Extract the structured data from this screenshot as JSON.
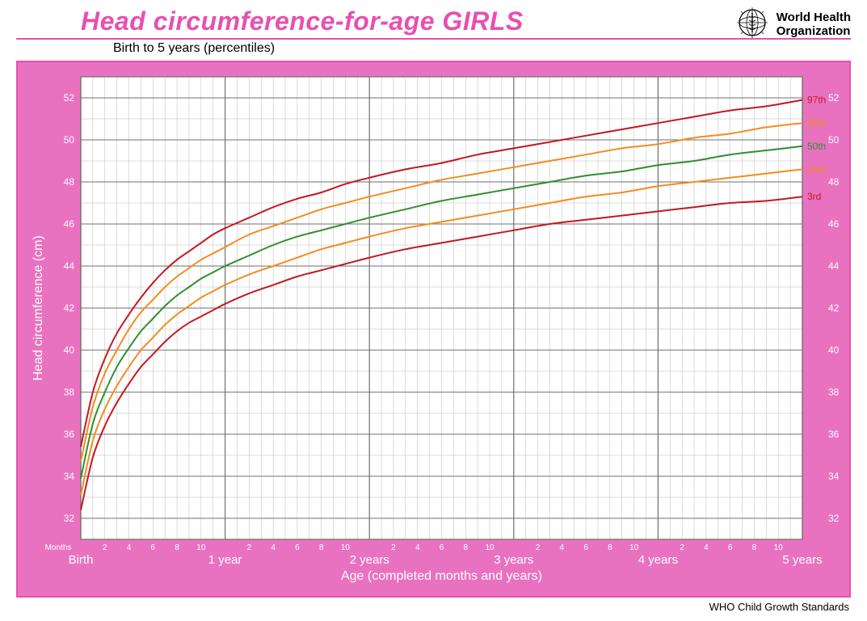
{
  "header": {
    "title": "Head circumference-for-age  GIRLS",
    "subtitle": "Birth to 5 years (percentiles)",
    "title_color": "#e84fb0",
    "rule_color": "#e84fb0",
    "who_line1": "World Health",
    "who_line2": "Organization"
  },
  "footer": {
    "text": "WHO Child Growth Standards"
  },
  "chart": {
    "type": "line",
    "frame_border_color": "#e84fb0",
    "frame_bg_color": "#e972c0",
    "plot_bg_color": "#ffffff",
    "grid_minor_color": "#b9b9b9",
    "grid_major_color": "#6f6f6f",
    "axis_label_color": "#ffffff",
    "tick_label_color": "#ffffff",
    "month_label_color": "#ffffff",
    "x_axis_title": "Age (completed months and years)",
    "y_axis_title": "Head circumference (cm)",
    "months_label": "Months",
    "y_min": 31,
    "y_max": 53,
    "y_ticks": [
      32,
      34,
      36,
      38,
      40,
      42,
      44,
      46,
      48,
      50,
      52
    ],
    "x_min_months": 0,
    "x_max_months": 60,
    "x_major_months": [
      0,
      12,
      24,
      36,
      48,
      60
    ],
    "x_major_labels": [
      "Birth",
      "1 year",
      "2 years",
      "3 years",
      "4 years",
      "5 years"
    ],
    "x_minor_tick_labels": [
      "2",
      "4",
      "6",
      "8",
      "10"
    ],
    "axis_title_fontsize": 16,
    "y_tick_fontsize": 12,
    "x_major_label_fontsize": 15,
    "x_minor_label_fontsize": 10,
    "line_width": 2,
    "series": [
      {
        "name": "97th",
        "label": "97th",
        "color": "#c4181f",
        "data": [
          [
            0,
            35.4
          ],
          [
            1,
            38.0
          ],
          [
            2,
            39.6
          ],
          [
            3,
            40.8
          ],
          [
            4,
            41.7
          ],
          [
            5,
            42.5
          ],
          [
            6,
            43.2
          ],
          [
            7,
            43.8
          ],
          [
            8,
            44.3
          ],
          [
            9,
            44.7
          ],
          [
            10,
            45.1
          ],
          [
            11,
            45.5
          ],
          [
            12,
            45.8
          ],
          [
            14,
            46.3
          ],
          [
            16,
            46.8
          ],
          [
            18,
            47.2
          ],
          [
            20,
            47.5
          ],
          [
            22,
            47.9
          ],
          [
            24,
            48.2
          ],
          [
            27,
            48.6
          ],
          [
            30,
            48.9
          ],
          [
            33,
            49.3
          ],
          [
            36,
            49.6
          ],
          [
            39,
            49.9
          ],
          [
            42,
            50.2
          ],
          [
            45,
            50.5
          ],
          [
            48,
            50.8
          ],
          [
            51,
            51.1
          ],
          [
            54,
            51.4
          ],
          [
            57,
            51.6
          ],
          [
            60,
            51.9
          ]
        ]
      },
      {
        "name": "85th",
        "label": "85th",
        "color": "#f28c1f",
        "data": [
          [
            0,
            34.7
          ],
          [
            1,
            37.3
          ],
          [
            2,
            38.9
          ],
          [
            3,
            40.0
          ],
          [
            4,
            41.0
          ],
          [
            5,
            41.8
          ],
          [
            6,
            42.4
          ],
          [
            7,
            43.0
          ],
          [
            8,
            43.5
          ],
          [
            9,
            43.9
          ],
          [
            10,
            44.3
          ],
          [
            11,
            44.6
          ],
          [
            12,
            44.9
          ],
          [
            14,
            45.5
          ],
          [
            16,
            45.9
          ],
          [
            18,
            46.3
          ],
          [
            20,
            46.7
          ],
          [
            22,
            47.0
          ],
          [
            24,
            47.3
          ],
          [
            27,
            47.7
          ],
          [
            30,
            48.1
          ],
          [
            33,
            48.4
          ],
          [
            36,
            48.7
          ],
          [
            39,
            49.0
          ],
          [
            42,
            49.3
          ],
          [
            45,
            49.6
          ],
          [
            48,
            49.8
          ],
          [
            51,
            50.1
          ],
          [
            54,
            50.3
          ],
          [
            57,
            50.6
          ],
          [
            60,
            50.8
          ]
        ]
      },
      {
        "name": "50th",
        "label": "50th",
        "color": "#2f8f2f",
        "data": [
          [
            0,
            33.9
          ],
          [
            1,
            36.5
          ],
          [
            2,
            38.0
          ],
          [
            3,
            39.2
          ],
          [
            4,
            40.1
          ],
          [
            5,
            40.9
          ],
          [
            6,
            41.5
          ],
          [
            7,
            42.1
          ],
          [
            8,
            42.6
          ],
          [
            9,
            43.0
          ],
          [
            10,
            43.4
          ],
          [
            11,
            43.7
          ],
          [
            12,
            44.0
          ],
          [
            14,
            44.5
          ],
          [
            16,
            45.0
          ],
          [
            18,
            45.4
          ],
          [
            20,
            45.7
          ],
          [
            22,
            46.0
          ],
          [
            24,
            46.3
          ],
          [
            27,
            46.7
          ],
          [
            30,
            47.1
          ],
          [
            33,
            47.4
          ],
          [
            36,
            47.7
          ],
          [
            39,
            48.0
          ],
          [
            42,
            48.3
          ],
          [
            45,
            48.5
          ],
          [
            48,
            48.8
          ],
          [
            51,
            49.0
          ],
          [
            54,
            49.3
          ],
          [
            57,
            49.5
          ],
          [
            60,
            49.7
          ]
        ]
      },
      {
        "name": "15th",
        "label": "15th",
        "color": "#f28c1f",
        "data": [
          [
            0,
            33.1
          ],
          [
            1,
            35.7
          ],
          [
            2,
            37.2
          ],
          [
            3,
            38.3
          ],
          [
            4,
            39.2
          ],
          [
            5,
            40.0
          ],
          [
            6,
            40.6
          ],
          [
            7,
            41.2
          ],
          [
            8,
            41.7
          ],
          [
            9,
            42.1
          ],
          [
            10,
            42.5
          ],
          [
            11,
            42.8
          ],
          [
            12,
            43.1
          ],
          [
            14,
            43.6
          ],
          [
            16,
            44.0
          ],
          [
            18,
            44.4
          ],
          [
            20,
            44.8
          ],
          [
            22,
            45.1
          ],
          [
            24,
            45.4
          ],
          [
            27,
            45.8
          ],
          [
            30,
            46.1
          ],
          [
            33,
            46.4
          ],
          [
            36,
            46.7
          ],
          [
            39,
            47.0
          ],
          [
            42,
            47.3
          ],
          [
            45,
            47.5
          ],
          [
            48,
            47.8
          ],
          [
            51,
            48.0
          ],
          [
            54,
            48.2
          ],
          [
            57,
            48.4
          ],
          [
            60,
            48.6
          ]
        ]
      },
      {
        "name": "3rd",
        "label": "3rd",
        "color": "#c4181f",
        "data": [
          [
            0,
            32.4
          ],
          [
            1,
            34.9
          ],
          [
            2,
            36.4
          ],
          [
            3,
            37.5
          ],
          [
            4,
            38.4
          ],
          [
            5,
            39.2
          ],
          [
            6,
            39.8
          ],
          [
            7,
            40.4
          ],
          [
            8,
            40.9
          ],
          [
            9,
            41.3
          ],
          [
            10,
            41.6
          ],
          [
            11,
            41.9
          ],
          [
            12,
            42.2
          ],
          [
            14,
            42.7
          ],
          [
            16,
            43.1
          ],
          [
            18,
            43.5
          ],
          [
            20,
            43.8
          ],
          [
            22,
            44.1
          ],
          [
            24,
            44.4
          ],
          [
            27,
            44.8
          ],
          [
            30,
            45.1
          ],
          [
            33,
            45.4
          ],
          [
            36,
            45.7
          ],
          [
            39,
            46.0
          ],
          [
            42,
            46.2
          ],
          [
            45,
            46.4
          ],
          [
            48,
            46.6
          ],
          [
            51,
            46.8
          ],
          [
            54,
            47.0
          ],
          [
            57,
            47.1
          ],
          [
            60,
            47.3
          ]
        ]
      }
    ]
  }
}
